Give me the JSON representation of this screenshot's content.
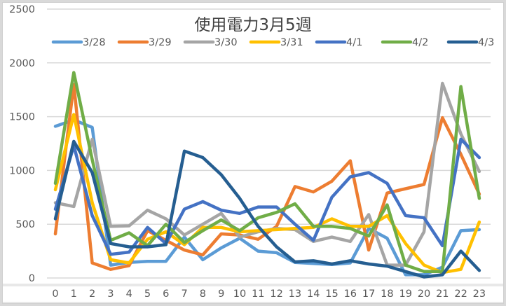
{
  "chart_data": {
    "type": "line",
    "title": "使用電力3月5週",
    "xlabel": "",
    "ylabel": "",
    "ylim": [
      0,
      2500
    ],
    "yticks": [
      0,
      500,
      1000,
      1500,
      2000,
      2500
    ],
    "grid": true,
    "legend_position": "top",
    "x": [
      0,
      1,
      2,
      3,
      4,
      5,
      6,
      7,
      8,
      9,
      10,
      11,
      12,
      13,
      14,
      15,
      16,
      17,
      18,
      19,
      20,
      21,
      22,
      23
    ],
    "series": [
      {
        "name": "3/28",
        "color": "#5B9BD5",
        "values": [
          1410,
          1470,
          1400,
          120,
          145,
          155,
          155,
          380,
          170,
          280,
          370,
          250,
          235,
          145,
          135,
          125,
          140,
          460,
          370,
          30,
          30,
          100,
          440,
          450
        ]
      },
      {
        "name": "3/29",
        "color": "#ED7D31",
        "values": [
          410,
          1800,
          140,
          80,
          115,
          440,
          350,
          260,
          215,
          410,
          400,
          360,
          480,
          850,
          800,
          900,
          1090,
          260,
          790,
          830,
          870,
          1490,
          1150,
          780
        ]
      },
      {
        "name": "3/30",
        "color": "#A5A5A5",
        "values": [
          700,
          665,
          1290,
          480,
          485,
          630,
          550,
          400,
          500,
          600,
          380,
          430,
          460,
          450,
          340,
          380,
          340,
          590,
          120,
          120,
          430,
          1810,
          1340,
          990
        ]
      },
      {
        "name": "3/31",
        "color": "#FFC000",
        "values": [
          820,
          1520,
          700,
          170,
          140,
          360,
          430,
          310,
          470,
          470,
          430,
          440,
          450,
          460,
          470,
          550,
          480,
          480,
          580,
          320,
          120,
          50,
          80,
          520
        ]
      },
      {
        "name": "4/1",
        "color": "#4472C4",
        "values": [
          640,
          1230,
          580,
          220,
          240,
          470,
          320,
          640,
          710,
          630,
          600,
          660,
          660,
          500,
          350,
          750,
          940,
          980,
          880,
          580,
          560,
          300,
          1290,
          1120
        ]
      },
      {
        "name": "4/2",
        "color": "#70AD47",
        "values": [
          880,
          1910,
          1100,
          350,
          420,
          300,
          500,
          330,
          440,
          540,
          440,
          560,
          610,
          690,
          480,
          480,
          460,
          390,
          680,
          120,
          60,
          60,
          1780,
          740
        ]
      },
      {
        "name": "4/3",
        "color": "#255E91",
        "values": [
          550,
          1270,
          980,
          320,
          290,
          290,
          310,
          1180,
          1120,
          960,
          740,
          480,
          290,
          150,
          160,
          130,
          160,
          130,
          110,
          60,
          10,
          30,
          250,
          70
        ]
      }
    ]
  }
}
